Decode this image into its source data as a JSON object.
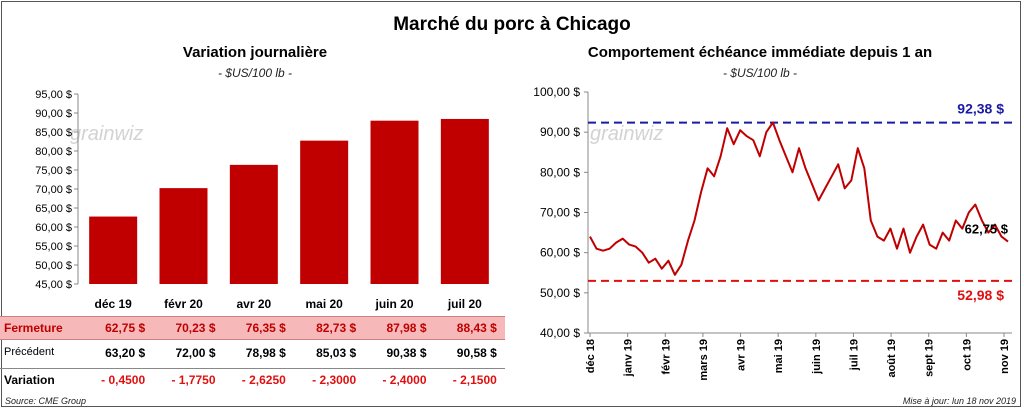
{
  "title": "Marché du porc à Chicago",
  "left": {
    "subtitle": "Variation journalière",
    "unit": "- $US/100 lb -",
    "rows": {
      "fermeture_label": "Fermeture",
      "precedent_label": "Précédent",
      "variation_label": "Variation",
      "fermeture": [
        "62,75 $",
        "70,23 $",
        "76,35 $",
        "82,73 $",
        "87,98 $",
        "88,43 $"
      ],
      "precedent": [
        "63,20 $",
        "72,00 $",
        "78,98 $",
        "85,03 $",
        "90,38 $",
        "90,58 $"
      ],
      "variation": [
        "- 0,4500",
        "- 1,7750",
        "- 2,6250",
        "- 2,3000",
        "- 2,4000",
        "- 2,1500"
      ]
    }
  },
  "right": {
    "subtitle": "Comportement échéance immédiate depuis 1 an",
    "unit": "- $US/100 lb -",
    "high_label": "92,38 $",
    "low_label": "52,98 $",
    "last_label": "62,75 $"
  },
  "watermark": "grainwiz",
  "source": "Source: CME Group",
  "updated": "Mise à jour: lun 18 nov 2019",
  "colors": {
    "bar": "#c00000",
    "line": "#c00000",
    "high": "#1a1aa6",
    "low": "#e01010",
    "fermeture_bg": "#f6b8b8"
  },
  "chart_data": [
    {
      "type": "bar",
      "categories": [
        "déc 19",
        "févr 20",
        "avr 20",
        "mai 20",
        "juin 20",
        "juil 20"
      ],
      "values": [
        62.75,
        70.23,
        76.35,
        82.73,
        87.98,
        88.43
      ],
      "ylim": [
        45,
        95
      ],
      "yticks": [
        "45,00 $",
        "50,00 $",
        "55,00 $",
        "60,00 $",
        "65,00 $",
        "70,00 $",
        "75,00 $",
        "80,00 $",
        "85,00 $",
        "90,00 $",
        "95,00 $"
      ],
      "grid": false
    },
    {
      "type": "line",
      "xticks": [
        "déc 18",
        "janv 19",
        "févr 19",
        "mars 19",
        "avr 19",
        "mai 19",
        "juin 19",
        "juil 19",
        "août 19",
        "sept 19",
        "oct 19",
        "nov 19"
      ],
      "yticks": [
        "40,00 $",
        "50,00 $",
        "60,00 $",
        "70,00 $",
        "80,00 $",
        "90,00 $",
        "100,00 $"
      ],
      "ylim": [
        40,
        100
      ],
      "values": [
        64,
        61,
        60.5,
        61,
        62.5,
        63.5,
        62,
        61.5,
        60,
        57.5,
        58.5,
        56,
        58,
        54.5,
        57,
        63,
        68,
        75,
        81,
        79,
        84,
        91,
        87,
        90.5,
        89,
        88,
        84,
        90,
        92.4,
        88,
        84,
        80,
        86,
        81,
        77,
        73,
        76,
        79,
        82,
        76,
        78,
        86,
        81,
        68,
        64,
        63,
        66,
        61,
        66,
        60,
        64,
        67,
        62,
        61,
        65,
        63,
        68,
        66,
        70,
        72,
        68,
        65,
        67,
        64,
        62.75
      ],
      "high": 92.38,
      "low": 52.98,
      "grid": false
    }
  ]
}
